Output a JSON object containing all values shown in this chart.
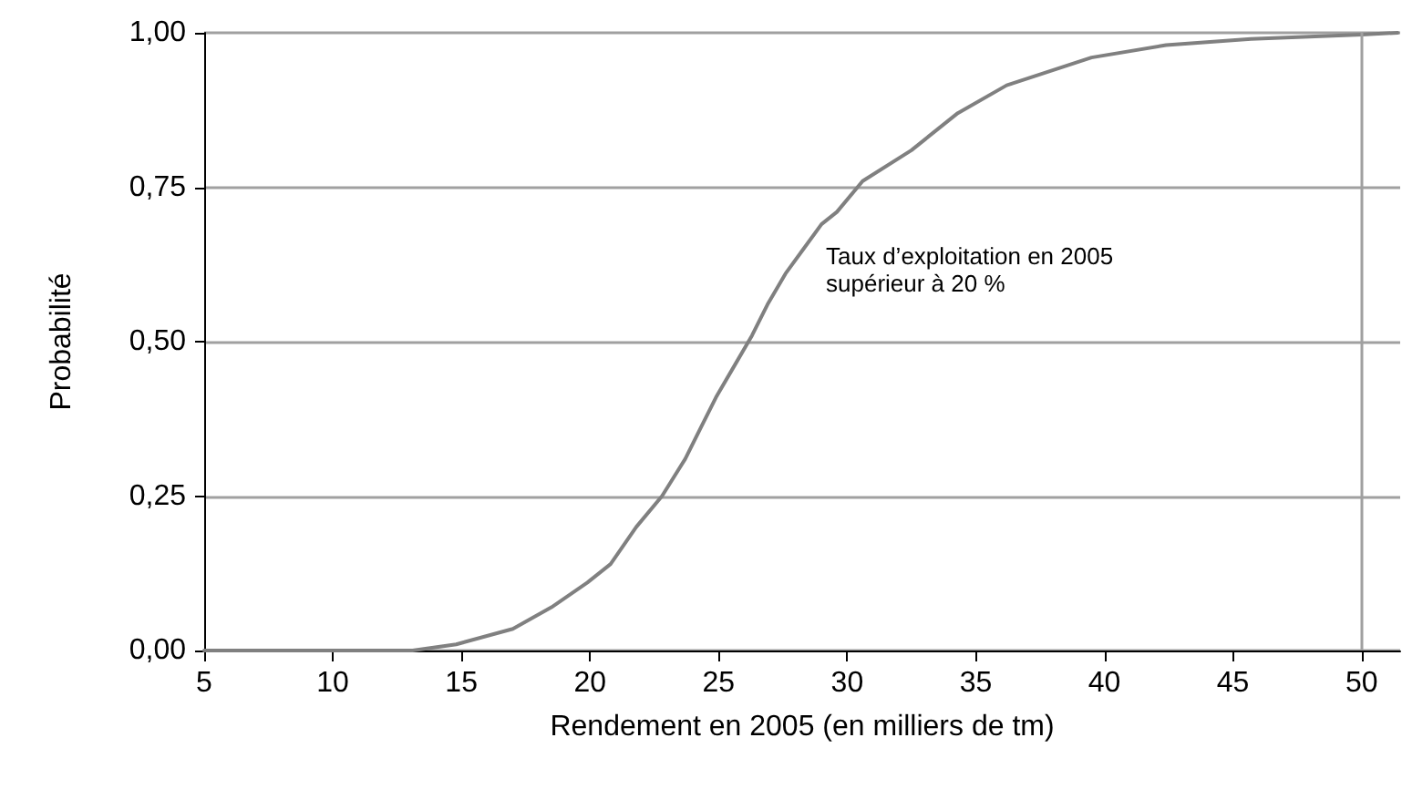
{
  "chart_data": {
    "type": "line",
    "xlabel": "Rendement en 2005 (en milliers de tm)",
    "ylabel": "Probabilité",
    "annotations": [
      "Taux d’exploitation en 2005\nsupérieur à 20 %"
    ],
    "series": [
      {
        "color": "#808080",
        "x": [
          5,
          7.9,
          13.1,
          14.8,
          17.0,
          18.5,
          19.9,
          20.8,
          21.8,
          22.8,
          23.7,
          24.3,
          24.9,
          25.6,
          26.3,
          26.9,
          27.6,
          28.3,
          29.0,
          29.6,
          30.6,
          32.5,
          34.3,
          36.2,
          39.5,
          42.4,
          45.7,
          50,
          51.4
        ],
        "values": [
          0,
          0,
          0,
          0.01,
          0.035,
          0.07,
          0.11,
          0.14,
          0.2,
          0.25,
          0.31,
          0.36,
          0.41,
          0.46,
          0.51,
          0.56,
          0.61,
          0.65,
          0.69,
          0.71,
          0.76,
          0.81,
          0.87,
          0.915,
          0.96,
          0.98,
          0.99,
          0.997,
          1.0
        ]
      }
    ],
    "xlim": [
      5,
      51.5
    ],
    "xticks": [
      5,
      10,
      15,
      20,
      25,
      30,
      35,
      40,
      45,
      50
    ],
    "ylim": [
      0,
      1
    ],
    "yticks": [
      {
        "value": 0,
        "label": "0,00"
      },
      {
        "value": 0.25,
        "label": "0,25"
      },
      {
        "value": 0.5,
        "label": "0,50"
      },
      {
        "value": 0.75,
        "label": "0,75"
      },
      {
        "value": 1,
        "label": "1,00"
      }
    ],
    "ref_lines": [
      {
        "axis": "x",
        "value": 50,
        "color": "#a0a0a0"
      }
    ],
    "grid": "y",
    "marker": "none",
    "line_style": "solid"
  }
}
